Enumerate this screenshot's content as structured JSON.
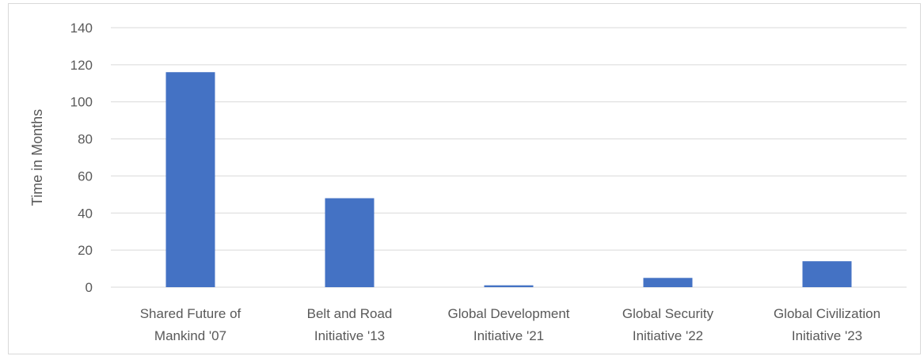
{
  "chart_data": {
    "type": "bar",
    "categories": [
      [
        "Shared Future of",
        "Mankind '07"
      ],
      [
        "Belt and Road",
        "Initiative '13"
      ],
      [
        "Global Development",
        "Initiative '21"
      ],
      [
        "Global Security",
        "Initiative '22"
      ],
      [
        "Global Civilization",
        "Initiative '23"
      ]
    ],
    "values": [
      116,
      48,
      1,
      5,
      14
    ],
    "title": "",
    "xlabel": "",
    "ylabel": "Time in Months",
    "ylim": [
      0,
      140
    ],
    "yticks": [
      0,
      20,
      40,
      60,
      80,
      100,
      120,
      140
    ],
    "grid": true,
    "legend": "none",
    "bar_color": "#4472c4",
    "grid_color": "#d9d9d9"
  }
}
